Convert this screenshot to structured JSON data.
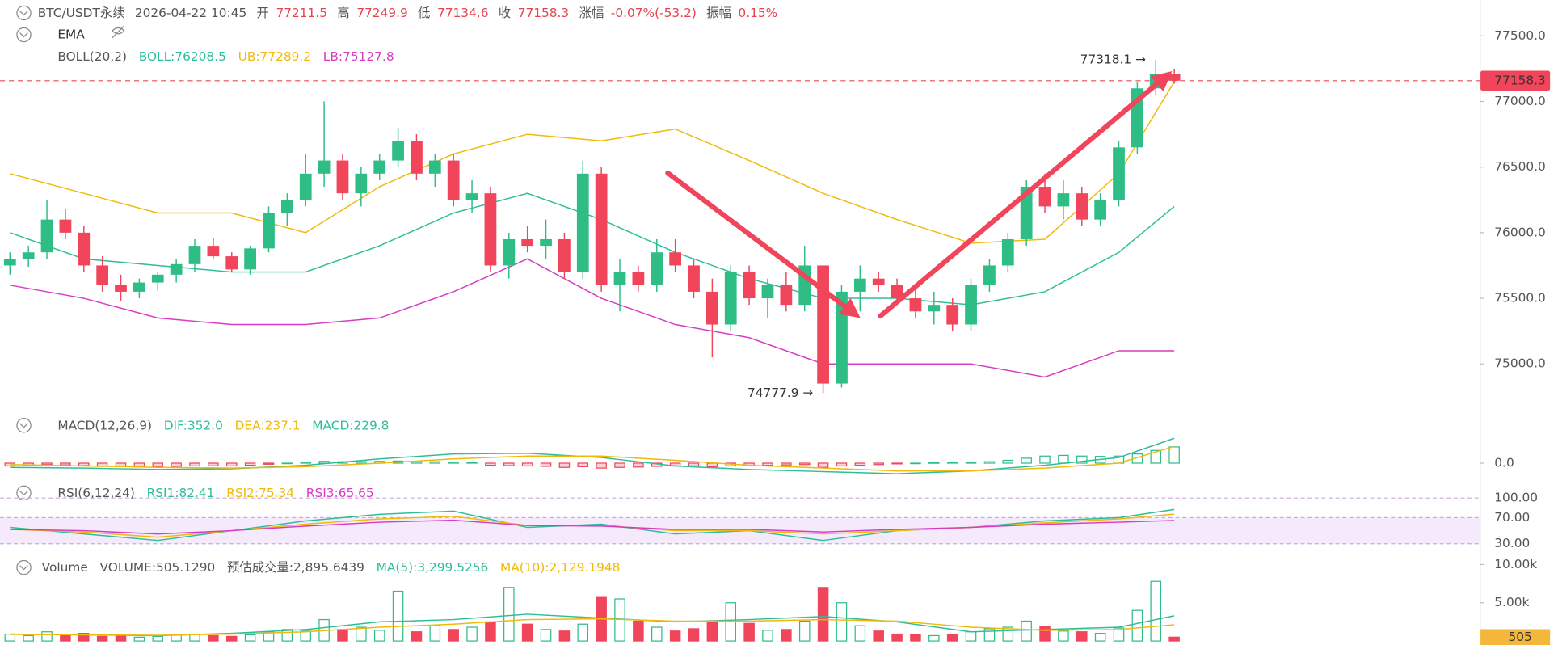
{
  "header": {
    "symbol": "BTC/USDT永续",
    "time": "2026-04-22 10:45",
    "open_label": "开",
    "open": 77211.5,
    "high_label": "高",
    "high": 77249.9,
    "low_label": "低",
    "low": 77134.6,
    "close_label": "收",
    "close": 77158.3,
    "change_label": "涨幅",
    "change": "-0.07%(-53.2)",
    "amplitude_label": "振幅",
    "amplitude": "0.15%"
  },
  "chart_data": [
    {
      "type": "candlestick",
      "legend": "EMA",
      "indicator": "BOLL(20,2)",
      "up_color": "#2ebd85",
      "down_color": "#f0455a",
      "open": [
        75750,
        75800,
        75850,
        76100,
        76000,
        75750,
        75600,
        75550,
        75620,
        75680,
        75760,
        75900,
        75820,
        75720,
        75880,
        76150,
        76250,
        76450,
        76550,
        76300,
        76450,
        76550,
        76700,
        76450,
        76550,
        76250,
        76300,
        75750,
        75950,
        75900,
        75950,
        75700,
        76450,
        75600,
        75700,
        75600,
        75850,
        75750,
        75550,
        75300,
        75700,
        75500,
        75600,
        75450,
        75750,
        74850,
        75550,
        75650,
        75600,
        75500,
        75400,
        75450,
        75300,
        75600,
        75750,
        75950,
        76350,
        76200,
        76300,
        76100,
        76250,
        76650,
        77100,
        77211.5
      ],
      "high": [
        75850,
        75900,
        76250,
        76180,
        76050,
        75820,
        75680,
        75650,
        75700,
        75800,
        75950,
        75960,
        75850,
        75900,
        76200,
        76300,
        76600,
        77000,
        76600,
        76500,
        76600,
        76800,
        76750,
        76600,
        76600,
        76400,
        76350,
        76000,
        76050,
        76100,
        76000,
        76550,
        76500,
        75800,
        75750,
        75950,
        75950,
        75800,
        75650,
        75750,
        75750,
        75650,
        75700,
        75900,
        75750,
        75600,
        75750,
        75700,
        75650,
        75600,
        75550,
        75500,
        75650,
        75800,
        76000,
        76400,
        76450,
        76400,
        76350,
        76300,
        76700,
        77150,
        77318.1,
        77249.9
      ],
      "low": [
        75680,
        75740,
        75800,
        75950,
        75700,
        75550,
        75480,
        75500,
        75560,
        75620,
        75700,
        75800,
        75700,
        75680,
        75850,
        76050,
        76200,
        76350,
        76250,
        76200,
        76400,
        76500,
        76400,
        76350,
        76200,
        76150,
        75700,
        75650,
        75850,
        75800,
        75650,
        75650,
        75550,
        75400,
        75550,
        75550,
        75700,
        75500,
        75050,
        75250,
        75450,
        75350,
        75400,
        75400,
        74777.9,
        74820,
        75400,
        75550,
        75450,
        75350,
        75300,
        75250,
        75250,
        75550,
        75700,
        75900,
        76150,
        76100,
        76050,
        76050,
        76200,
        76600,
        77050,
        77134.6
      ],
      "close": [
        75800,
        75850,
        76100,
        76000,
        75750,
        75600,
        75550,
        75620,
        75680,
        75760,
        75900,
        75820,
        75720,
        75880,
        76150,
        76250,
        76450,
        76550,
        76300,
        76450,
        76550,
        76700,
        76450,
        76550,
        76250,
        76300,
        75750,
        75950,
        75900,
        75950,
        75700,
        76450,
        75600,
        75700,
        75600,
        75850,
        75750,
        75550,
        75300,
        75700,
        75500,
        75600,
        75450,
        75750,
        74850,
        75550,
        75650,
        75600,
        75500,
        75400,
        75450,
        75300,
        75600,
        75750,
        75950,
        76350,
        76200,
        76300,
        76100,
        76250,
        76650,
        77100,
        77211.5,
        77158.3
      ],
      "line_x": [
        0,
        4,
        8,
        12,
        16,
        20,
        24,
        28,
        32,
        36,
        40,
        44,
        48,
        52,
        56,
        60,
        63
      ],
      "series": [
        {
          "name": "BOLL:76208.5",
          "color": "#2ebd9a",
          "values": [
            76000,
            75800,
            75750,
            75700,
            75700,
            75900,
            76150,
            76300,
            76100,
            75850,
            75650,
            75500,
            75500,
            75450,
            75550,
            75850,
            76200
          ]
        },
        {
          "name": "UB:77289.2",
          "color": "#f0b90b",
          "values": [
            76450,
            76300,
            76150,
            76150,
            76000,
            76350,
            76600,
            76750,
            76700,
            76790,
            76550,
            76300,
            76100,
            75920,
            75950,
            76450,
            77150
          ]
        },
        {
          "name": "LB:75127.8",
          "color": "#d63cc4",
          "values": [
            75600,
            75500,
            75350,
            75300,
            75300,
            75350,
            75550,
            75800,
            75500,
            75300,
            75200,
            75000,
            75000,
            75000,
            74900,
            75100,
            75100
          ]
        }
      ],
      "ylim": [
        74668,
        77773
      ],
      "yticks": [
        {
          "value": 75000,
          "label": "75000.0"
        },
        {
          "value": 75500,
          "label": "75500.0"
        },
        {
          "value": 76000,
          "label": "76000.0"
        },
        {
          "value": 76500,
          "label": "76500.0"
        },
        {
          "value": 77000,
          "label": "77000.0"
        },
        {
          "value": 77500,
          "label": "77500.0"
        }
      ],
      "last_price": {
        "value": 77158.3,
        "label": "77158.3"
      },
      "annotations": [
        "77318.1 →",
        "74777.9 →"
      ]
    },
    {
      "type": "macd",
      "indicator": "MACD(12,26,9)",
      "hist_name": "MACD:229.8",
      "values": [
        -40,
        -30,
        -20,
        -25,
        -35,
        -45,
        -50,
        -55,
        -50,
        -45,
        -40,
        -38,
        -40,
        -30,
        -15,
        0,
        15,
        25,
        20,
        20,
        25,
        30,
        25,
        20,
        15,
        10,
        -30,
        -35,
        -40,
        -45,
        -60,
        -50,
        -70,
        -60,
        -55,
        -45,
        -40,
        -40,
        -50,
        -40,
        -35,
        -30,
        -25,
        -20,
        -60,
        -40,
        -30,
        -20,
        -10,
        0,
        5,
        10,
        10,
        20,
        40,
        70,
        100,
        110,
        100,
        95,
        100,
        130,
        180,
        229.8
      ],
      "line_x": [
        0,
        4,
        8,
        12,
        16,
        20,
        24,
        28,
        32,
        36,
        40,
        44,
        48,
        52,
        56,
        60,
        63
      ],
      "series": [
        {
          "name": "DIF:352.0",
          "color": "#2ebd9a",
          "values": [
            -60,
            -70,
            -90,
            -80,
            -30,
            60,
            130,
            140,
            80,
            -40,
            -90,
            -120,
            -150,
            -110,
            -30,
            80,
            352
          ]
        },
        {
          "name": "DEA:237.1",
          "color": "#f0b90b",
          "values": [
            -20,
            -40,
            -60,
            -70,
            -50,
            0,
            60,
            100,
            100,
            40,
            -30,
            -70,
            -110,
            -110,
            -70,
            0,
            237.1
          ]
        }
      ],
      "ylim": [
        -197,
        676
      ],
      "yticks": [
        {
          "value": 0,
          "label": "0.0"
        }
      ]
    },
    {
      "type": "line",
      "indicator": "RSI(6,12,24)",
      "line_x": [
        0,
        4,
        8,
        12,
        16,
        20,
        24,
        28,
        32,
        36,
        40,
        44,
        48,
        52,
        56,
        60,
        63
      ],
      "series": [
        {
          "name": "RSI1:82.41",
          "color": "#2ebd9a",
          "values": [
            55,
            45,
            35,
            50,
            65,
            75,
            80,
            55,
            60,
            45,
            50,
            35,
            50,
            55,
            65,
            70,
            82.41
          ]
        },
        {
          "name": "RSI2:75.34",
          "color": "#f0b90b",
          "values": [
            52,
            48,
            40,
            50,
            60,
            68,
            72,
            58,
            58,
            50,
            50,
            45,
            50,
            55,
            62,
            68,
            75.34
          ]
        },
        {
          "name": "RSI3:65.65",
          "color": "#d63cc4",
          "values": [
            52,
            50,
            45,
            50,
            57,
            63,
            66,
            58,
            57,
            52,
            52,
            48,
            52,
            55,
            60,
            63,
            65.65
          ]
        }
      ],
      "ylim": [
        18,
        120
      ],
      "yticks": [
        {
          "value": 100,
          "label": "100.00"
        },
        {
          "value": 70,
          "label": "70.00"
        },
        {
          "value": 30,
          "label": "30.00"
        }
      ]
    },
    {
      "type": "bar",
      "legend": "Volume",
      "name": "VOLUME:505.1290",
      "estimate": "预估成交量:2,895.6439",
      "values": [
        900,
        700,
        1200,
        800,
        1000,
        600,
        700,
        500,
        600,
        800,
        900,
        700,
        600,
        800,
        1200,
        1500,
        1300,
        2800,
        1500,
        1800,
        1400,
        6500,
        1200,
        2000,
        1500,
        1800,
        2500,
        7000,
        2200,
        1500,
        1300,
        2200,
        5800,
        5500,
        2600,
        1800,
        1300,
        1600,
        2400,
        5000,
        2300,
        1400,
        1500,
        2600,
        7000,
        5000,
        2000,
        1300,
        900,
        800,
        700,
        900,
        1200,
        1600,
        1800,
        2600,
        1900,
        1300,
        1200,
        1000,
        1700,
        4000,
        7800,
        505.129
      ],
      "line_x": [
        0,
        4,
        8,
        12,
        16,
        20,
        24,
        28,
        32,
        36,
        40,
        44,
        48,
        52,
        56,
        60,
        63
      ],
      "series": [
        {
          "name": "MA(5):3,299.5256",
          "color": "#2ebd9a",
          "values": [
            900,
            800,
            700,
            1000,
            1500,
            2500,
            2800,
            3500,
            3000,
            2500,
            2800,
            3200,
            2500,
            1200,
            1500,
            1800,
            3299.5
          ]
        },
        {
          "name": "MA(10):2,129.1948",
          "color": "#f0b90b",
          "values": [
            850,
            800,
            750,
            900,
            1200,
            1800,
            2200,
            2800,
            2900,
            2600,
            2600,
            2800,
            2600,
            1800,
            1400,
            1500,
            2129.2
          ]
        }
      ],
      "ylim": [
        0,
        11040
      ],
      "yticks": [
        {
          "value": 5000,
          "label": "5.00k"
        },
        {
          "value": 10000,
          "label": "10.00k"
        }
      ],
      "last_label": "505"
    }
  ]
}
